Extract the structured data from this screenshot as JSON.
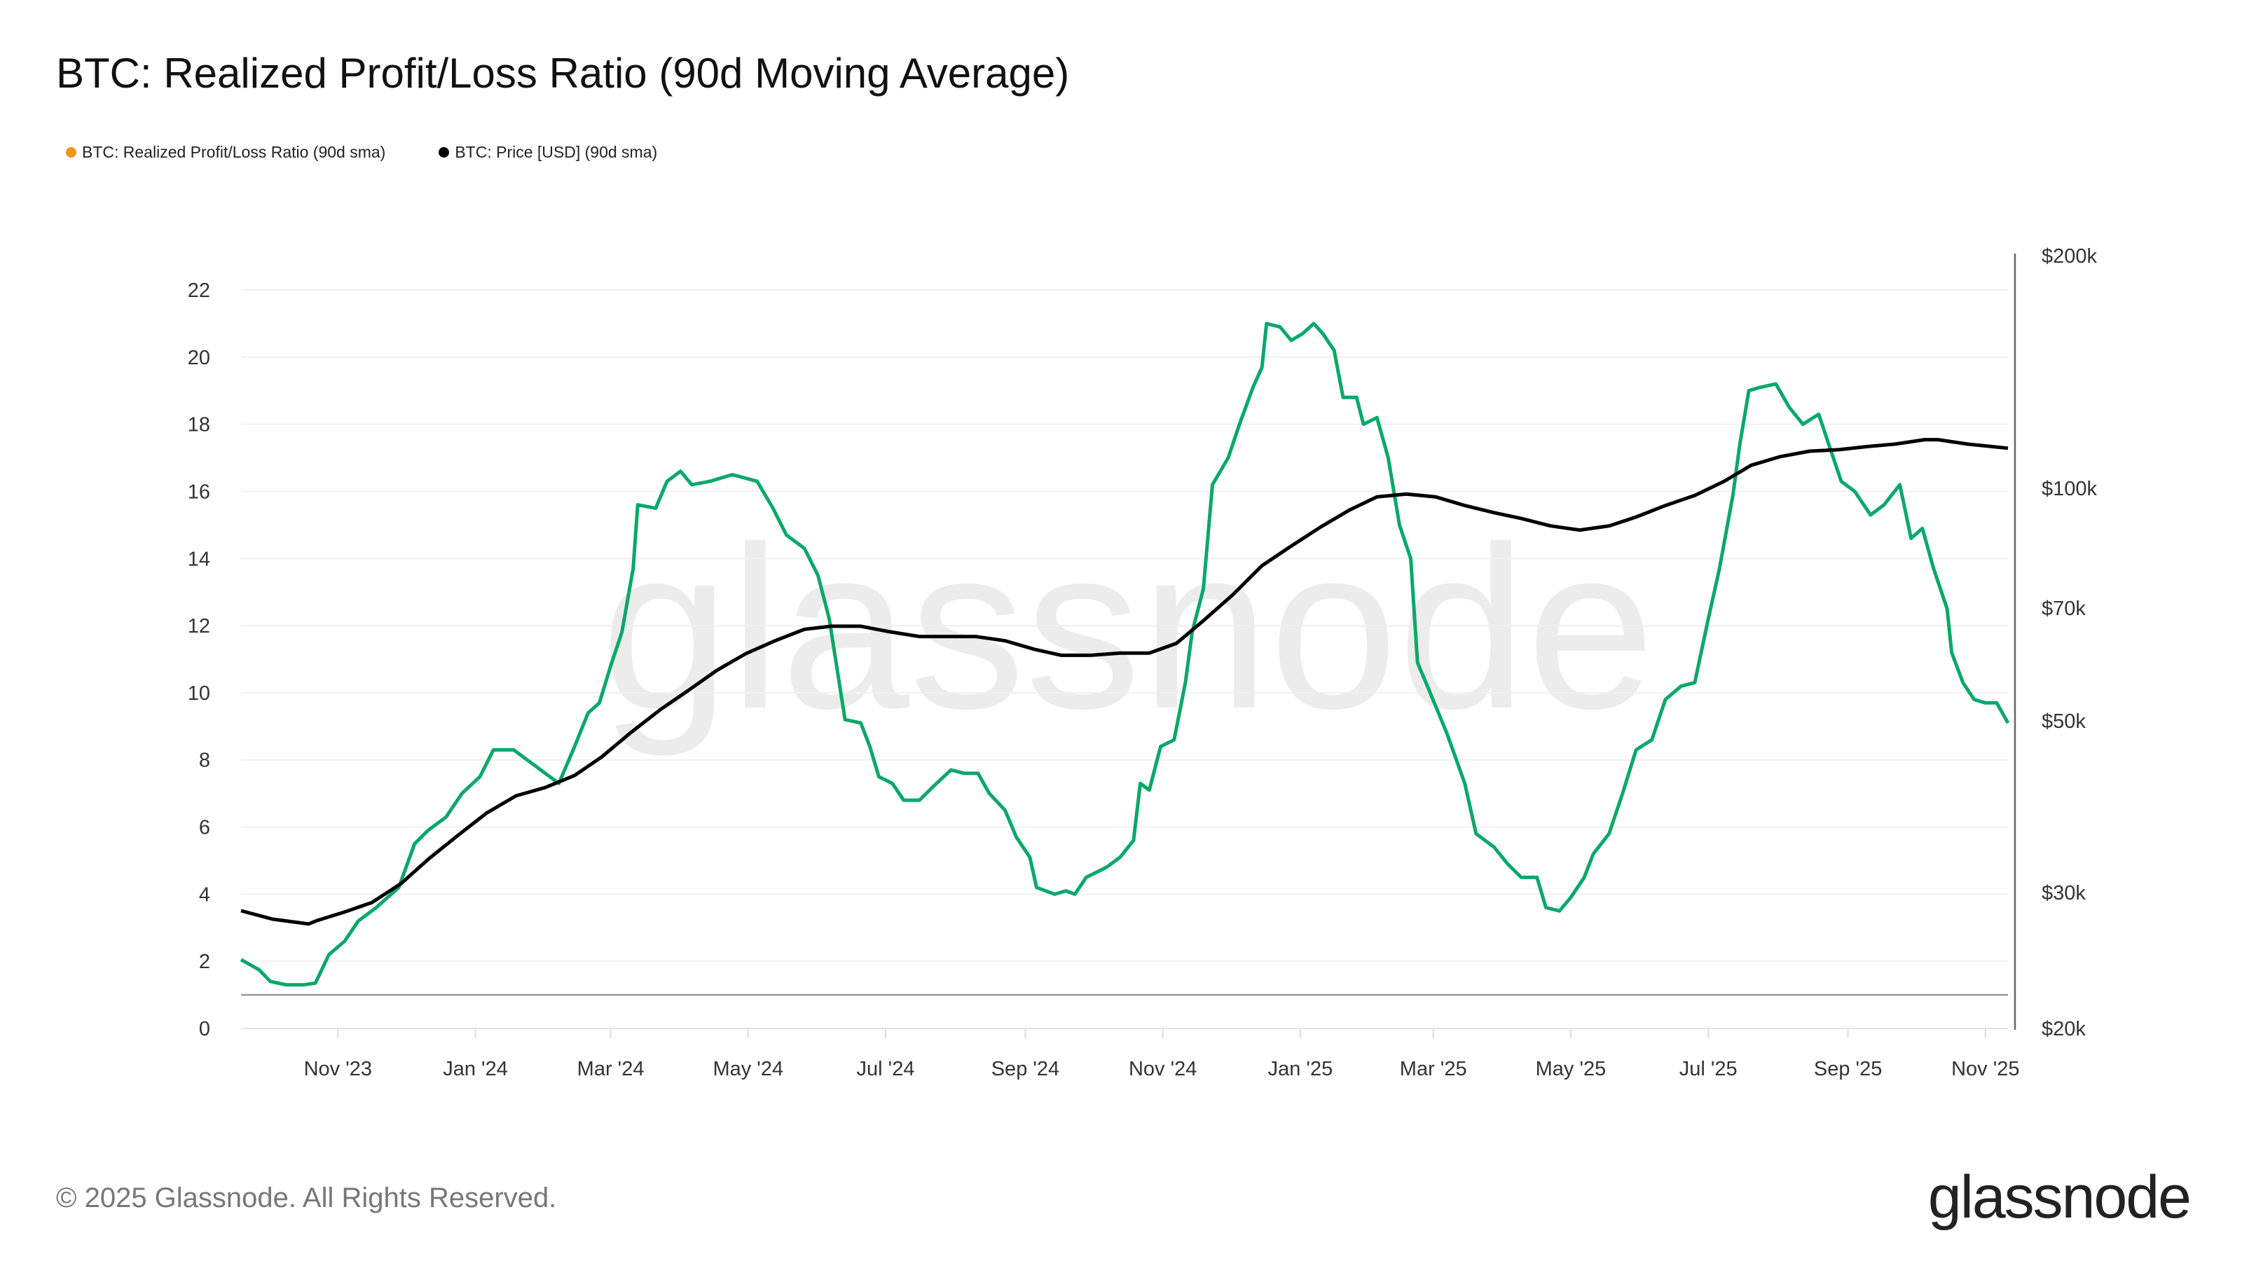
{
  "title": "BTC: Realized Profit/Loss Ratio (90d Moving Average)",
  "footer": "© 2025 Glassnode. All Rights Reserved.",
  "logo": "glassnode",
  "watermark": "glassnode",
  "chart_data": {
    "type": "line",
    "title": "BTC: Realized Profit/Loss Ratio (90d Moving Average)",
    "legend_position": "top-left",
    "grid": true,
    "x_range": [
      "2023-09-19",
      "2025-11-11"
    ],
    "x_ticks": [
      {
        "date": "2023-11-01",
        "label": "Nov '23"
      },
      {
        "date": "2024-01-01",
        "label": "Jan '24"
      },
      {
        "date": "2024-03-01",
        "label": "Mar '24"
      },
      {
        "date": "2024-05-01",
        "label": "May '24"
      },
      {
        "date": "2024-07-01",
        "label": "Jul '24"
      },
      {
        "date": "2024-09-01",
        "label": "Sep '24"
      },
      {
        "date": "2024-11-01",
        "label": "Nov '24"
      },
      {
        "date": "2025-01-01",
        "label": "Jan '25"
      },
      {
        "date": "2025-03-01",
        "label": "Mar '25"
      },
      {
        "date": "2025-05-01",
        "label": "May '25"
      },
      {
        "date": "2025-07-01",
        "label": "Jul '25"
      },
      {
        "date": "2025-09-01",
        "label": "Sep '25"
      },
      {
        "date": "2025-11-01",
        "label": "Nov '25"
      }
    ],
    "y_left": {
      "range": [
        0,
        22
      ],
      "ticks": [
        0,
        2,
        4,
        6,
        8,
        10,
        12,
        14,
        16,
        18,
        20,
        22
      ],
      "reference_line": 1
    },
    "y_right": {
      "scale": "log",
      "range": [
        20000,
        200000
      ],
      "ticks": [
        {
          "v": 20000,
          "label": "$20k"
        },
        {
          "v": 30000,
          "label": "$30k"
        },
        {
          "v": 50000,
          "label": "$50k"
        },
        {
          "v": 70000,
          "label": "$70k"
        },
        {
          "v": 100000,
          "label": "$100k"
        },
        {
          "v": 200000,
          "label": "$200k"
        }
      ]
    },
    "series": [
      {
        "name": "BTC: Realized Profit/Loss Ratio (90d sma)",
        "legend_color": "#f7931a",
        "line_color": "#0aa86a",
        "axis": "left",
        "points": [
          [
            "2023-09-19",
            2.05
          ],
          [
            "2023-09-27",
            1.75
          ],
          [
            "2023-10-02",
            1.4
          ],
          [
            "2023-10-09",
            1.3
          ],
          [
            "2023-10-17",
            1.3
          ],
          [
            "2023-10-22",
            1.35
          ],
          [
            "2023-10-28",
            2.2
          ],
          [
            "2023-11-04",
            2.6
          ],
          [
            "2023-11-10",
            3.2
          ],
          [
            "2023-11-18",
            3.6
          ],
          [
            "2023-11-28",
            4.2
          ],
          [
            "2023-12-05",
            5.5
          ],
          [
            "2023-12-11",
            5.9
          ],
          [
            "2023-12-19",
            6.3
          ],
          [
            "2023-12-26",
            7.0
          ],
          [
            "2024-01-03",
            7.5
          ],
          [
            "2024-01-09",
            8.3
          ],
          [
            "2024-01-18",
            8.3
          ],
          [
            "2024-01-24",
            8.0
          ],
          [
            "2024-02-01",
            7.6
          ],
          [
            "2024-02-07",
            7.3
          ],
          [
            "2024-02-14",
            8.4
          ],
          [
            "2024-02-20",
            9.4
          ],
          [
            "2024-02-25",
            9.7
          ],
          [
            "2024-03-01",
            10.8
          ],
          [
            "2024-03-06",
            11.8
          ],
          [
            "2024-03-11",
            13.7
          ],
          [
            "2024-03-13",
            15.6
          ],
          [
            "2024-03-21",
            15.5
          ],
          [
            "2024-03-26",
            16.3
          ],
          [
            "2024-04-01",
            16.6
          ],
          [
            "2024-04-06",
            16.2
          ],
          [
            "2024-04-14",
            16.3
          ],
          [
            "2024-04-24",
            16.5
          ],
          [
            "2024-05-05",
            16.3
          ],
          [
            "2024-05-12",
            15.5
          ],
          [
            "2024-05-18",
            14.7
          ],
          [
            "2024-05-26",
            14.3
          ],
          [
            "2024-06-01",
            13.5
          ],
          [
            "2024-06-06",
            12.2
          ],
          [
            "2024-06-13",
            9.2
          ],
          [
            "2024-06-20",
            9.1
          ],
          [
            "2024-06-24",
            8.4
          ],
          [
            "2024-06-28",
            7.5
          ],
          [
            "2024-07-04",
            7.3
          ],
          [
            "2024-07-09",
            6.8
          ],
          [
            "2024-07-16",
            6.8
          ],
          [
            "2024-07-22",
            7.2
          ],
          [
            "2024-07-30",
            7.7
          ],
          [
            "2024-08-05",
            7.6
          ],
          [
            "2024-08-11",
            7.6
          ],
          [
            "2024-08-16",
            7.0
          ],
          [
            "2024-08-23",
            6.5
          ],
          [
            "2024-08-28",
            5.7
          ],
          [
            "2024-09-03",
            5.1
          ],
          [
            "2024-09-06",
            4.2
          ],
          [
            "2024-09-14",
            4.0
          ],
          [
            "2024-09-19",
            4.1
          ],
          [
            "2024-09-23",
            4.0
          ],
          [
            "2024-09-28",
            4.5
          ],
          [
            "2024-10-07",
            4.8
          ],
          [
            "2024-10-13",
            5.1
          ],
          [
            "2024-10-19",
            5.6
          ],
          [
            "2024-10-22",
            7.3
          ],
          [
            "2024-10-26",
            7.1
          ],
          [
            "2024-10-31",
            8.4
          ],
          [
            "2024-11-06",
            8.6
          ],
          [
            "2024-11-11",
            10.3
          ],
          [
            "2024-11-14",
            11.8
          ],
          [
            "2024-11-19",
            13.1
          ],
          [
            "2024-11-23",
            16.2
          ],
          [
            "2024-11-30",
            17.0
          ],
          [
            "2024-12-05",
            18.0
          ],
          [
            "2024-12-11",
            19.1
          ],
          [
            "2024-12-15",
            19.7
          ],
          [
            "2024-12-17",
            21.0
          ],
          [
            "2024-12-23",
            20.9
          ],
          [
            "2024-12-28",
            20.5
          ],
          [
            "2025-01-02",
            20.7
          ],
          [
            "2025-01-07",
            21.0
          ],
          [
            "2025-01-11",
            20.7
          ],
          [
            "2025-01-16",
            20.2
          ],
          [
            "2025-01-20",
            18.8
          ],
          [
            "2025-01-26",
            18.8
          ],
          [
            "2025-01-29",
            18.0
          ],
          [
            "2025-02-04",
            18.2
          ],
          [
            "2025-02-09",
            17.0
          ],
          [
            "2025-02-14",
            15.0
          ],
          [
            "2025-02-19",
            14.0
          ],
          [
            "2025-02-22",
            10.9
          ],
          [
            "2025-02-27",
            10.1
          ],
          [
            "2025-03-07",
            8.8
          ],
          [
            "2025-03-15",
            7.3
          ],
          [
            "2025-03-20",
            5.8
          ],
          [
            "2025-03-28",
            5.4
          ],
          [
            "2025-04-03",
            4.9
          ],
          [
            "2025-04-09",
            4.5
          ],
          [
            "2025-04-16",
            4.5
          ],
          [
            "2025-04-20",
            3.6
          ],
          [
            "2025-04-26",
            3.5
          ],
          [
            "2025-05-01",
            3.9
          ],
          [
            "2025-05-07",
            4.5
          ],
          [
            "2025-05-11",
            5.2
          ],
          [
            "2025-05-18",
            5.8
          ],
          [
            "2025-05-24",
            7.0
          ],
          [
            "2025-05-30",
            8.3
          ],
          [
            "2025-06-06",
            8.6
          ],
          [
            "2025-06-12",
            9.8
          ],
          [
            "2025-06-19",
            10.2
          ],
          [
            "2025-06-25",
            10.3
          ],
          [
            "2025-07-01",
            12.2
          ],
          [
            "2025-07-06",
            13.7
          ],
          [
            "2025-07-12",
            15.9
          ],
          [
            "2025-07-15",
            17.4
          ],
          [
            "2025-07-19",
            19.0
          ],
          [
            "2025-07-24",
            19.1
          ],
          [
            "2025-07-31",
            19.2
          ],
          [
            "2025-08-06",
            18.5
          ],
          [
            "2025-08-12",
            18.0
          ],
          [
            "2025-08-19",
            18.3
          ],
          [
            "2025-08-22",
            17.7
          ],
          [
            "2025-08-29",
            16.3
          ],
          [
            "2025-09-04",
            16.0
          ],
          [
            "2025-09-11",
            15.3
          ],
          [
            "2025-09-17",
            15.6
          ],
          [
            "2025-09-24",
            16.2
          ],
          [
            "2025-09-29",
            14.6
          ],
          [
            "2025-10-04",
            14.9
          ],
          [
            "2025-10-09",
            13.7
          ],
          [
            "2025-10-15",
            12.5
          ],
          [
            "2025-10-17",
            11.2
          ],
          [
            "2025-10-22",
            10.3
          ],
          [
            "2025-10-27",
            9.8
          ],
          [
            "2025-11-01",
            9.7
          ],
          [
            "2025-11-06",
            9.7
          ],
          [
            "2025-11-11",
            9.1
          ]
        ]
      },
      {
        "name": "BTC: Price [USD] (90d sma)",
        "legend_color": "#000000",
        "line_color": "#000000",
        "axis": "right",
        "points": [
          [
            "2023-09-19",
            28400
          ],
          [
            "2023-10-03",
            27700
          ],
          [
            "2023-10-19",
            27300
          ],
          [
            "2023-10-23",
            27600
          ],
          [
            "2023-11-04",
            28300
          ],
          [
            "2023-11-16",
            29100
          ],
          [
            "2023-11-29",
            30800
          ],
          [
            "2023-12-11",
            33100
          ],
          [
            "2023-12-24",
            35500
          ],
          [
            "2024-01-06",
            38000
          ],
          [
            "2024-01-19",
            40000
          ],
          [
            "2024-02-01",
            41000
          ],
          [
            "2024-02-14",
            42500
          ],
          [
            "2024-02-26",
            44900
          ],
          [
            "2024-03-10",
            48300
          ],
          [
            "2024-03-23",
            51700
          ],
          [
            "2024-04-05",
            54900
          ],
          [
            "2024-04-17",
            58100
          ],
          [
            "2024-04-30",
            61100
          ],
          [
            "2024-05-13",
            63500
          ],
          [
            "2024-05-26",
            65700
          ],
          [
            "2024-06-07",
            66300
          ],
          [
            "2024-06-20",
            66300
          ],
          [
            "2024-07-03",
            65200
          ],
          [
            "2024-07-16",
            64300
          ],
          [
            "2024-07-28",
            64300
          ],
          [
            "2024-08-10",
            64300
          ],
          [
            "2024-08-23",
            63500
          ],
          [
            "2024-09-05",
            61900
          ],
          [
            "2024-09-17",
            60800
          ],
          [
            "2024-09-30",
            60800
          ],
          [
            "2024-10-13",
            61200
          ],
          [
            "2024-10-26",
            61200
          ],
          [
            "2024-11-07",
            63000
          ],
          [
            "2024-11-19",
            67400
          ],
          [
            "2024-12-02",
            72800
          ],
          [
            "2024-12-15",
            79400
          ],
          [
            "2024-12-28",
            84200
          ],
          [
            "2025-01-10",
            89100
          ],
          [
            "2025-01-23",
            93800
          ],
          [
            "2025-02-04",
            97500
          ],
          [
            "2025-02-17",
            98300
          ],
          [
            "2025-03-02",
            97500
          ],
          [
            "2025-03-15",
            95000
          ],
          [
            "2025-03-28",
            93000
          ],
          [
            "2025-04-09",
            91400
          ],
          [
            "2025-04-22",
            89400
          ],
          [
            "2025-05-05",
            88300
          ],
          [
            "2025-05-18",
            89400
          ],
          [
            "2025-05-30",
            91800
          ],
          [
            "2025-06-12",
            95000
          ],
          [
            "2025-06-25",
            97900
          ],
          [
            "2025-07-08",
            102100
          ],
          [
            "2025-07-20",
            107100
          ],
          [
            "2025-08-02",
            109900
          ],
          [
            "2025-08-15",
            111700
          ],
          [
            "2025-08-28",
            112200
          ],
          [
            "2025-09-09",
            113200
          ],
          [
            "2025-09-22",
            114100
          ],
          [
            "2025-10-05",
            115600
          ],
          [
            "2025-10-11",
            115600
          ],
          [
            "2025-10-24",
            114100
          ],
          [
            "2025-11-11",
            112700
          ]
        ]
      }
    ]
  }
}
